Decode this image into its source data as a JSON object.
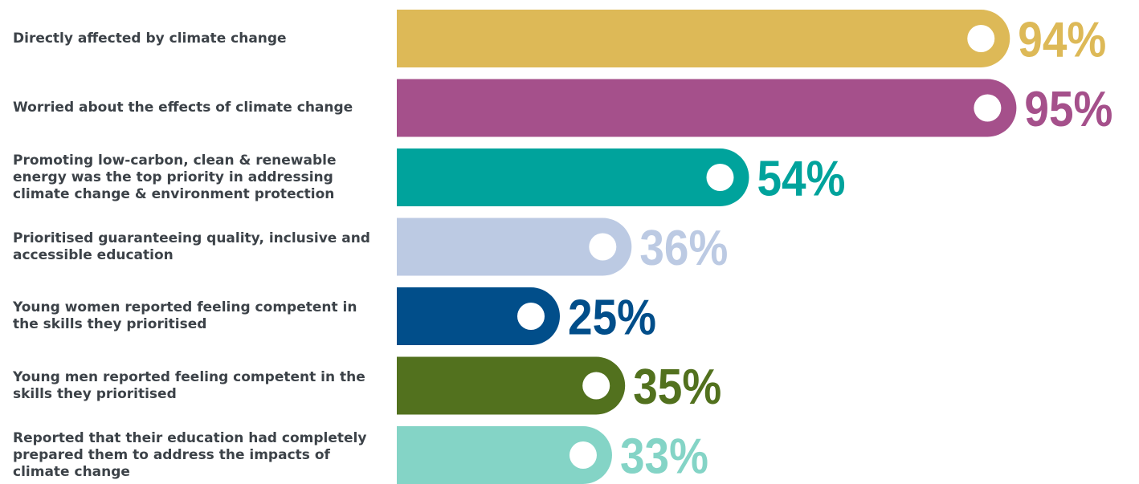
{
  "chart_data": {
    "type": "bar",
    "orientation": "horizontal",
    "categories": [
      "Directly affected by climate change",
      "Worried about the effects of climate change",
      "Promoting low-carbon, clean & renewable energy was the top priority in addressing climate change & environment protection",
      "Prioritised guaranteeing quality, inclusive and accessible education",
      "Young women reported feeling competent in the skills they prioritised",
      "Young men reported feeling competent in the skills they prioritised",
      "Reported that their education had completely prepared them to address the impacts of climate change"
    ],
    "values": [
      94,
      95,
      54,
      36,
      25,
      35,
      33
    ],
    "value_labels": [
      "94%",
      "95%",
      "54%",
      "36%",
      "25%",
      "35%",
      "33%"
    ],
    "colors": [
      "#ddb957",
      "#a5508b",
      "#00a39c",
      "#bccae3",
      "#014e8a",
      "#52711e",
      "#84d4c6"
    ],
    "xlim": [
      0,
      100
    ],
    "grid": false,
    "legend": "none",
    "title": "",
    "xlabel": "",
    "ylabel": ""
  }
}
